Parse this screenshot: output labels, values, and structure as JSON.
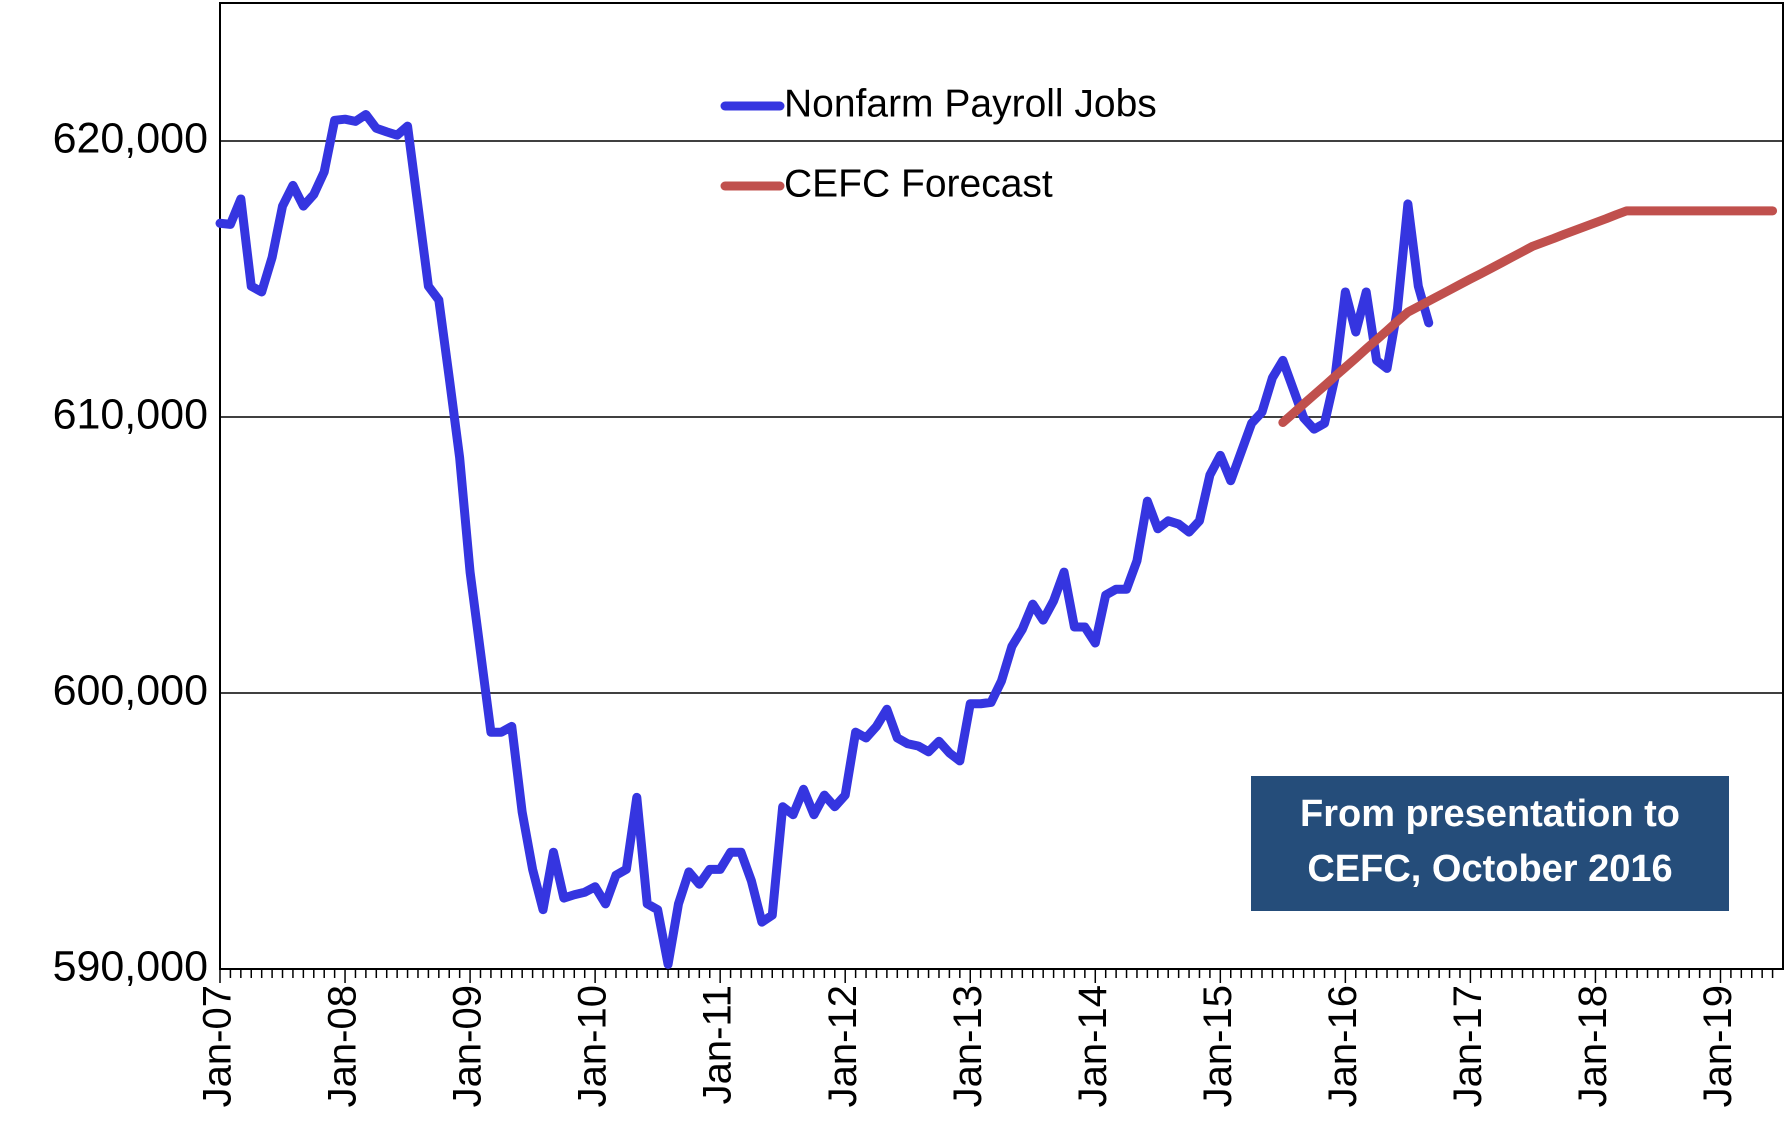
{
  "chart_data": {
    "type": "line",
    "categories": [
      "Jan-07",
      null,
      null,
      null,
      null,
      null,
      null,
      null,
      null,
      null,
      null,
      null,
      "Jan-08",
      null,
      null,
      null,
      null,
      null,
      null,
      null,
      null,
      null,
      null,
      null,
      "Jan-09",
      null,
      null,
      null,
      null,
      null,
      null,
      null,
      null,
      null,
      null,
      null,
      "Jan-10",
      null,
      null,
      null,
      null,
      null,
      null,
      null,
      null,
      null,
      null,
      null,
      "Jan-11",
      null,
      null,
      null,
      null,
      null,
      null,
      null,
      null,
      null,
      null,
      null,
      "Jan-12",
      null,
      null,
      null,
      null,
      null,
      null,
      null,
      null,
      null,
      null,
      null,
      "Jan-13",
      null,
      null,
      null,
      null,
      null,
      null,
      null,
      null,
      null,
      null,
      null,
      "Jan-14",
      null,
      null,
      null,
      null,
      null,
      null,
      null,
      null,
      null,
      null,
      null,
      "Jan-15",
      null,
      null,
      null,
      null,
      null,
      null,
      null,
      null,
      null,
      null,
      null,
      "Jan-16",
      null,
      null,
      null,
      null,
      null,
      null,
      null,
      null,
      null,
      null,
      null,
      "Jan-17",
      null,
      null,
      null,
      null,
      null,
      null,
      null,
      null,
      null,
      null,
      null,
      "Jan-18",
      null,
      null,
      null,
      null,
      null,
      null,
      null,
      null,
      null,
      null,
      null,
      "Jan-19",
      null,
      null,
      null,
      null,
      null
    ],
    "series": [
      {
        "name": "Nonfarm Payroll Jobs",
        "color": "#3535e0",
        "values": [
          617020,
          616980,
          617900,
          614740,
          614530,
          615780,
          617640,
          618390,
          617640,
          618060,
          618880,
          620750,
          620790,
          620710,
          620960,
          620460,
          620330,
          620210,
          620540,
          617640,
          614740,
          614240,
          611420,
          608520,
          604380,
          601480,
          598580,
          598580,
          598790,
          595680,
          593610,
          592150,
          594230,
          592570,
          592690,
          592780,
          592980,
          592360,
          593400,
          593610,
          596220,
          592360,
          592150,
          590170,
          592360,
          593520,
          593070,
          593610,
          593610,
          594230,
          594230,
          593190,
          591700,
          591950,
          595880,
          595590,
          596510,
          595590,
          596300,
          595880,
          596300,
          598580,
          598370,
          598790,
          599410,
          598370,
          598160,
          598080,
          597870,
          598250,
          597830,
          597540,
          599610,
          599610,
          599660,
          600440,
          601690,
          602310,
          603220,
          602640,
          603340,
          604380,
          602390,
          602390,
          601810,
          603550,
          603760,
          603760,
          604790,
          606950,
          605950,
          606240,
          606120,
          605830,
          606240,
          607900,
          608610,
          607690,
          608730,
          609770,
          610180,
          611420,
          612050,
          611010,
          609970,
          609560,
          609770,
          611420,
          614530,
          613080,
          614530,
          612050,
          611760,
          613910,
          617720,
          614740,
          613410,
          null,
          null,
          null,
          null,
          null,
          null,
          null,
          null,
          null,
          null,
          null,
          null,
          null,
          null,
          null,
          null,
          null,
          null,
          null,
          null,
          null,
          null,
          null,
          null,
          null,
          null,
          null,
          null,
          null,
          null,
          null,
          null,
          null
        ]
      },
      {
        "name": "CEFC Forecast",
        "color": "#c0504d",
        "values": [
          null,
          null,
          null,
          null,
          null,
          null,
          null,
          null,
          null,
          null,
          null,
          null,
          null,
          null,
          null,
          null,
          null,
          null,
          null,
          null,
          null,
          null,
          null,
          null,
          null,
          null,
          null,
          null,
          null,
          null,
          null,
          null,
          null,
          null,
          null,
          null,
          null,
          null,
          null,
          null,
          null,
          null,
          null,
          null,
          null,
          null,
          null,
          null,
          null,
          null,
          null,
          null,
          null,
          null,
          null,
          null,
          null,
          null,
          null,
          null,
          null,
          null,
          null,
          null,
          null,
          null,
          null,
          null,
          null,
          null,
          null,
          null,
          null,
          null,
          null,
          null,
          null,
          null,
          null,
          null,
          null,
          null,
          null,
          null,
          null,
          null,
          null,
          null,
          null,
          null,
          null,
          null,
          null,
          null,
          null,
          null,
          null,
          null,
          null,
          null,
          null,
          null,
          609800,
          610130,
          610470,
          610800,
          611130,
          611470,
          611800,
          612130,
          612470,
          612800,
          613130,
          613470,
          613800,
          614000,
          614200,
          614400,
          614600,
          614800,
          615000,
          615190,
          615390,
          615590,
          615790,
          615990,
          616190,
          616330,
          616470,
          616620,
          616760,
          616900,
          617040,
          617180,
          617330,
          617470,
          617470,
          617470,
          617470,
          617470,
          617470,
          617470,
          617470,
          617470,
          617470,
          617470,
          617470,
          617470,
          617470,
          617470
        ]
      }
    ],
    "ylim": [
      590000,
      625000
    ],
    "yticks": [
      {
        "value": 590000,
        "label": "590,000"
      },
      {
        "value": 600000,
        "label": "600,000"
      },
      {
        "value": 610000,
        "label": "610,000"
      },
      {
        "value": 620000,
        "label": "620,000"
      }
    ],
    "grid": true,
    "legend": "top",
    "annotation": {
      "lines": [
        "From presentation to",
        "CEFC, October 2016"
      ],
      "color": "#254d7a"
    }
  }
}
